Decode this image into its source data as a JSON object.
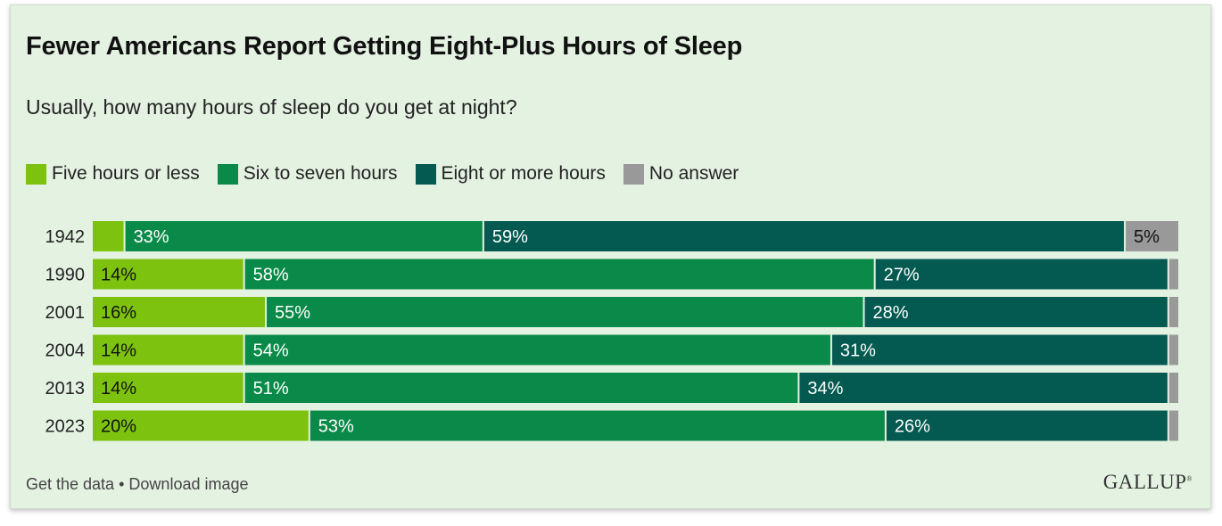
{
  "chart_data": {
    "type": "bar",
    "orientation": "horizontal",
    "stacked": true,
    "title": "Fewer Americans Report Getting Eight-Plus Hours of Sleep",
    "subtitle": "Usually, how many hours of sleep do you get at night?",
    "categories": [
      "1942",
      "1990",
      "2001",
      "2004",
      "2013",
      "2023"
    ],
    "series": [
      {
        "name": "Five hours or less",
        "color": "#7dc20f",
        "values": [
          3,
          14,
          16,
          14,
          14,
          20
        ],
        "labels": [
          "",
          "14%",
          "16%",
          "14%",
          "14%",
          "20%"
        ]
      },
      {
        "name": "Six to seven hours",
        "color": "#0a8a48",
        "values": [
          33,
          58,
          55,
          54,
          51,
          53
        ],
        "labels": [
          "33%",
          "58%",
          "55%",
          "54%",
          "51%",
          "53%"
        ]
      },
      {
        "name": "Eight or more hours",
        "color": "#045a50",
        "values": [
          59,
          27,
          28,
          31,
          34,
          26
        ],
        "labels": [
          "59%",
          "27%",
          "28%",
          "31%",
          "34%",
          "26%"
        ]
      },
      {
        "name": "No answer",
        "color": "#999999",
        "values": [
          5,
          1,
          1,
          1,
          1,
          1
        ],
        "labels": [
          "5%",
          "",
          "",
          "",
          "",
          ""
        ]
      }
    ],
    "xlim": [
      0,
      100
    ],
    "legend_position": "top",
    "grid": false
  },
  "footer": {
    "get_data": "Get the data",
    "separator": "•",
    "download": "Download image"
  },
  "logo": {
    "text": "GALLUP",
    "mark": "®"
  }
}
